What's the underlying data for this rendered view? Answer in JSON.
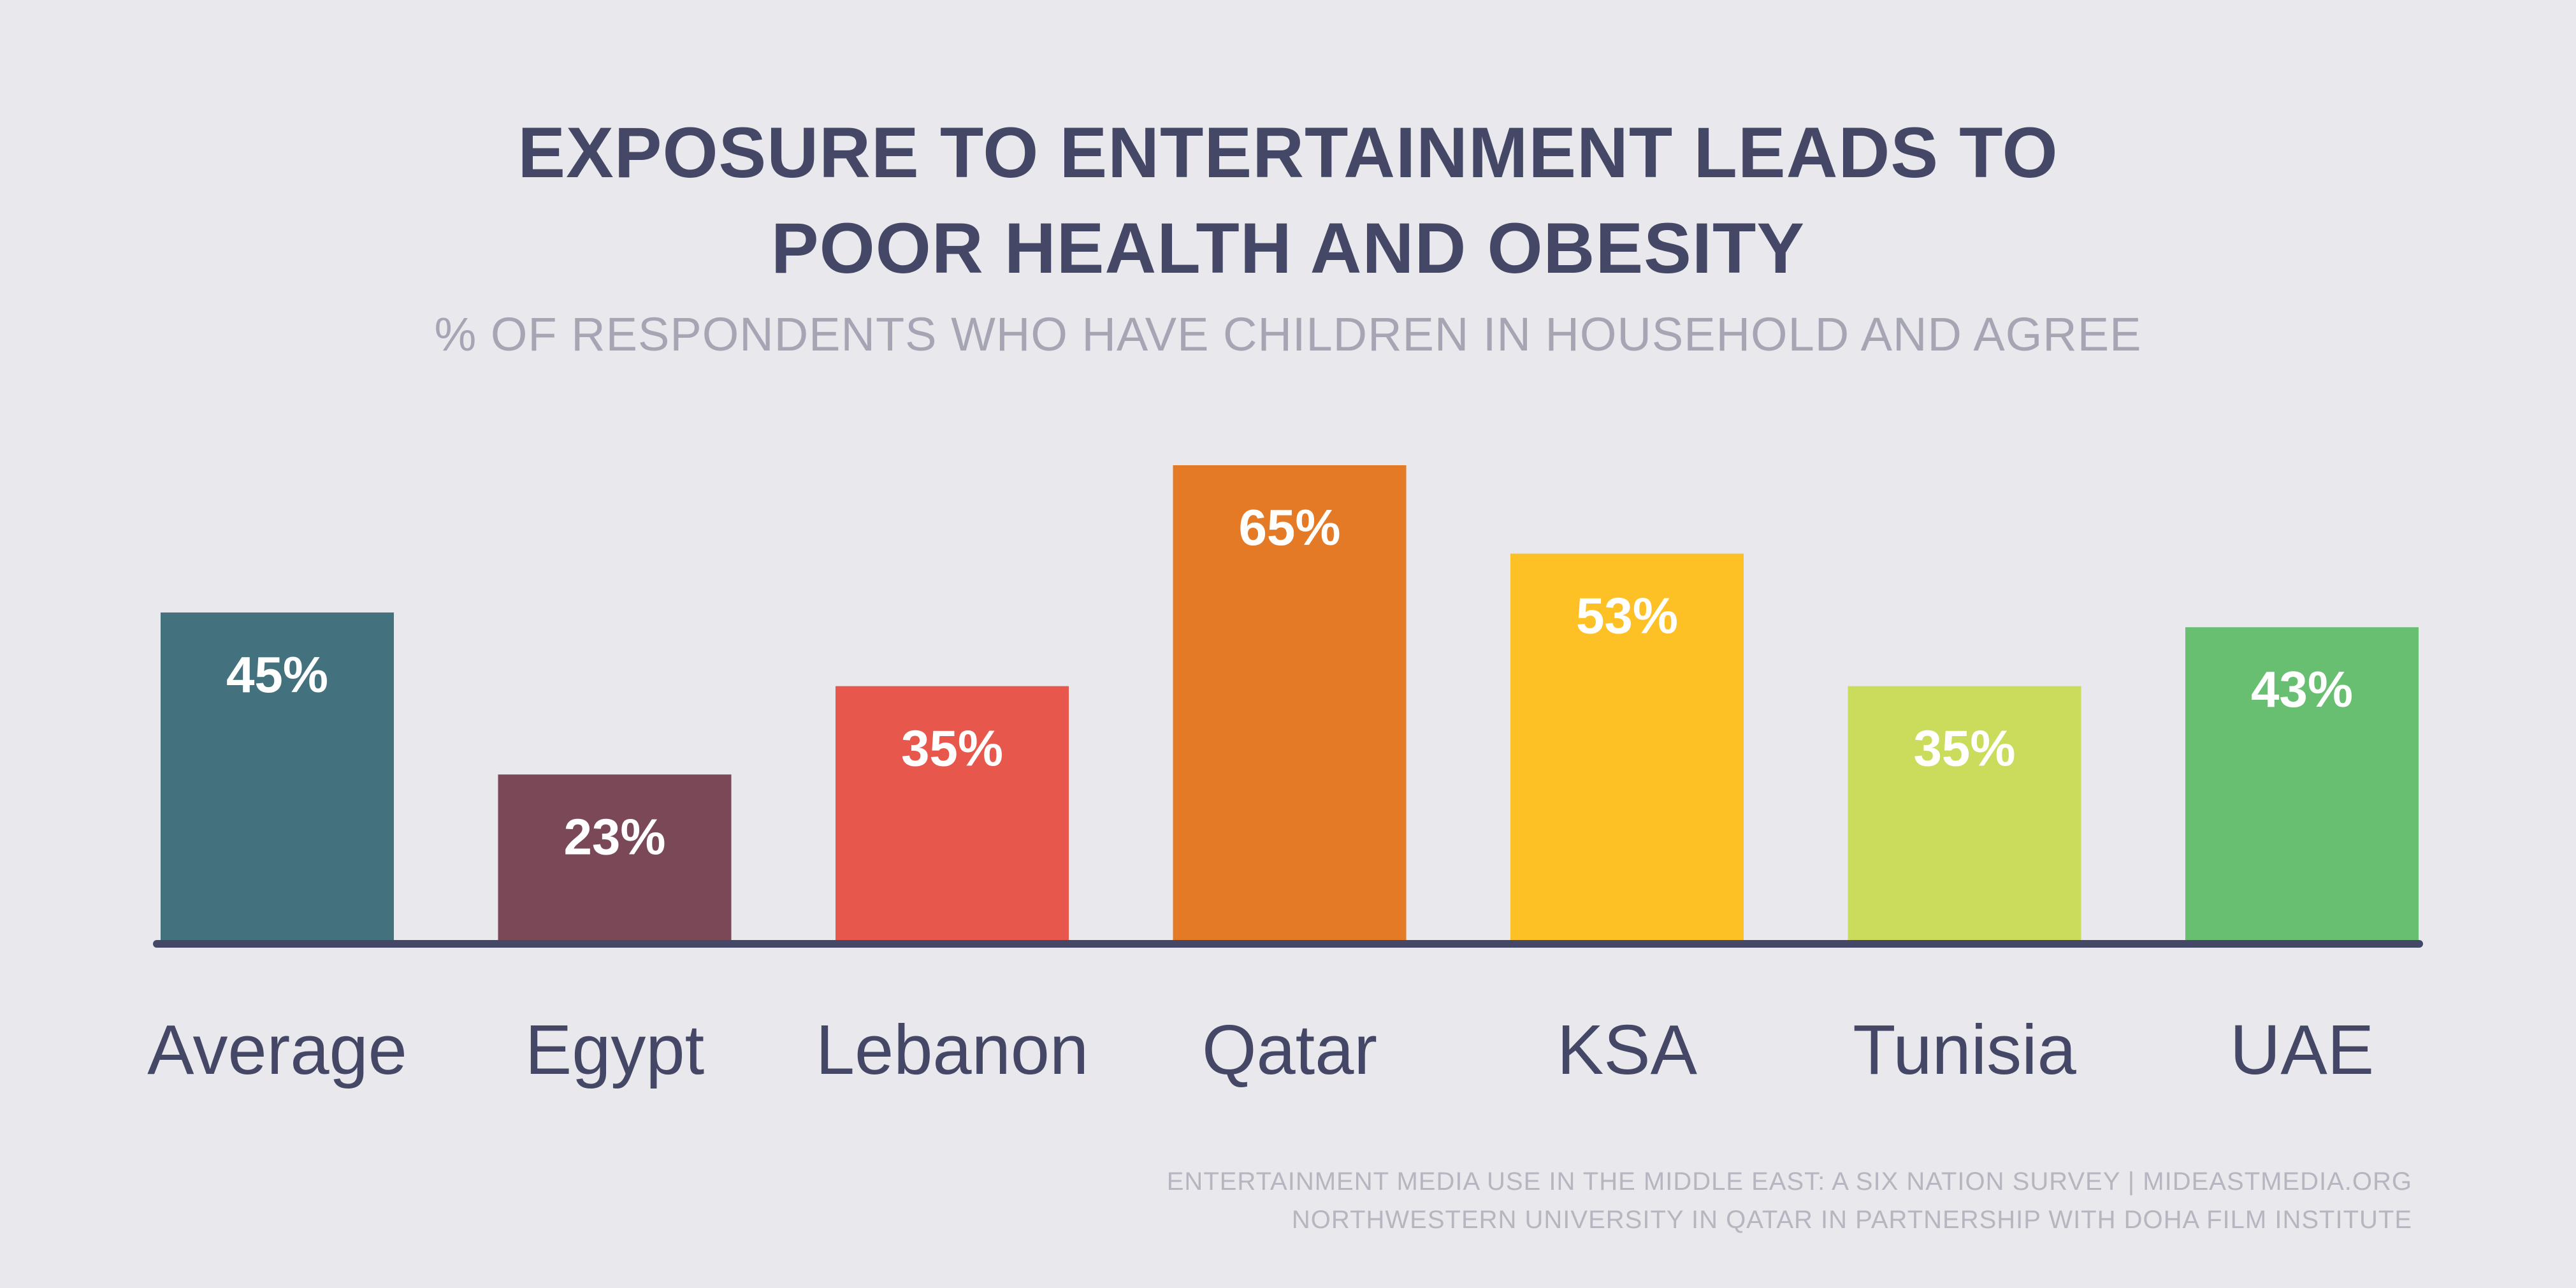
{
  "header": {
    "title_line_1": "EXPOSURE TO ENTERTAINMENT LEADS TO",
    "title_line_2": "POOR HEALTH AND OBESITY",
    "subtitle": "% OF RESPONDENTS WHO HAVE CHILDREN IN HOUSEHOLD AND AGREE"
  },
  "footer": {
    "line_1": "ENTERTAINMENT MEDIA USE IN THE MIDDLE EAST: A SIX NATION SURVEY | MIDEASTMEDIA.ORG",
    "line_2": "NORTHWESTERN UNIVERSITY IN QATAR IN PARTNERSHIP WITH DOHA FILM INSTITUTE"
  },
  "colors": {
    "background": "#e9e8ec",
    "title": "#454766",
    "subtitle": "#a6a5b4",
    "axis": "#454766",
    "bar_label": "#ffffff",
    "category_label": "#454766",
    "footer": "#b6b5c0"
  },
  "chart_data": {
    "type": "bar",
    "title": "EXPOSURE TO ENTERTAINMENT LEADS TO POOR HEALTH AND OBESITY",
    "subtitle": "% OF RESPONDENTS WHO HAVE CHILDREN IN HOUSEHOLD AND AGREE",
    "xlabel": "",
    "ylabel": "",
    "categories": [
      "Average",
      "Egypt",
      "Lebanon",
      "Qatar",
      "KSA",
      "Tunisia",
      "UAE"
    ],
    "values": [
      45,
      23,
      35,
      65,
      53,
      35,
      43
    ],
    "data_labels": [
      "45%",
      "23%",
      "35%",
      "65%",
      "53%",
      "35%",
      "43%"
    ],
    "bar_colors": [
      "#43727e",
      "#7b4857",
      "#e8574b",
      "#e57a26",
      "#fdc126",
      "#cbdc5c",
      "#68bf72"
    ],
    "ylim": [
      0,
      65
    ],
    "grid": false,
    "legend": "none"
  }
}
